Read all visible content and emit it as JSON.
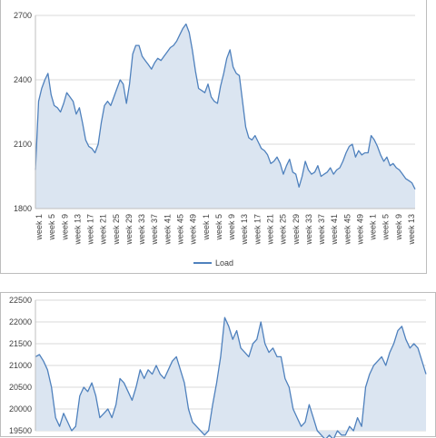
{
  "chart_data": [
    {
      "type": "area",
      "title": "",
      "xlabel": "",
      "ylabel": "",
      "ylim": [
        1800,
        2700
      ],
      "y_ticks": [
        1800,
        2100,
        2400,
        2700
      ],
      "x_tick_labels": [
        "week 1",
        "week 5",
        "week 9",
        "week 13",
        "week 17",
        "week 21",
        "week 25",
        "week 29",
        "week 33",
        "week 37",
        "week 41",
        "week 45",
        "week 49",
        "week 1",
        "week 5",
        "week 9",
        "week 13",
        "week 17",
        "week 21",
        "week 25",
        "week 29",
        "week 33",
        "week 37",
        "week 41",
        "week 45",
        "week 49",
        "week 1",
        "week 5",
        "week 9",
        "week 13"
      ],
      "grid": true,
      "legend": "bottom-center",
      "series": [
        {
          "name": "Load",
          "color": "#4f81bd",
          "fill": "#dbe5f1",
          "x": [
            0,
            1,
            2,
            3,
            4,
            5,
            6,
            7,
            8,
            9,
            10,
            11,
            12,
            13,
            14,
            15,
            16,
            17,
            18,
            19,
            20,
            21,
            22,
            23,
            24,
            25,
            26,
            27,
            28,
            29,
            30,
            31,
            32,
            33,
            34,
            35,
            36,
            37,
            38,
            39,
            40,
            41,
            42,
            43,
            44,
            45,
            46,
            47,
            48,
            49,
            50,
            51,
            52,
            53,
            54,
            55,
            56,
            57,
            58,
            59,
            60,
            61,
            62,
            63,
            64,
            65,
            66,
            67,
            68,
            69,
            70,
            71,
            72,
            73,
            74,
            75,
            76,
            77,
            78,
            79,
            80,
            81,
            82,
            83,
            84,
            85,
            86,
            87,
            88,
            89,
            90,
            91,
            92,
            93,
            94,
            95,
            96,
            97,
            98,
            99,
            100,
            101,
            102,
            103,
            104,
            105,
            106,
            107,
            108,
            109,
            110,
            111,
            112,
            113,
            114,
            115,
            116,
            117,
            118,
            119,
            120,
            121
          ],
          "values": [
            1980,
            2300,
            2360,
            2400,
            2430,
            2330,
            2280,
            2270,
            2250,
            2290,
            2340,
            2320,
            2300,
            2240,
            2270,
            2200,
            2120,
            2090,
            2080,
            2060,
            2100,
            2200,
            2280,
            2300,
            2280,
            2320,
            2360,
            2400,
            2380,
            2290,
            2380,
            2520,
            2560,
            2560,
            2510,
            2490,
            2470,
            2450,
            2480,
            2500,
            2490,
            2510,
            2530,
            2550,
            2560,
            2580,
            2610,
            2640,
            2660,
            2620,
            2540,
            2440,
            2360,
            2350,
            2340,
            2380,
            2320,
            2300,
            2290,
            2370,
            2430,
            2500,
            2540,
            2460,
            2430,
            2420,
            2300,
            2180,
            2130,
            2120,
            2140,
            2110,
            2080,
            2070,
            2050,
            2010,
            2020,
            2040,
            2010,
            1960,
            2000,
            2030,
            1970,
            1960,
            1900,
            1950,
            2020,
            1980,
            1960,
            1970,
            2000,
            1950,
            1960,
            1970,
            1990,
            1960,
            1980,
            1990,
            2020,
            2060,
            2090,
            2100,
            2040,
            2070,
            2050,
            2060,
            2060,
            2140,
            2120,
            2090,
            2050,
            2020,
            2040,
            2000,
            2010,
            1990,
            1980,
            1960,
            1940,
            1930,
            1920,
            1890
          ]
        }
      ]
    },
    {
      "type": "area",
      "title": "",
      "xlabel": "",
      "ylabel": "",
      "ylim": [
        19500,
        22500
      ],
      "y_ticks": [
        19500,
        20000,
        20500,
        21000,
        21500,
        22000,
        22500
      ],
      "grid": true,
      "series": [
        {
          "color": "#4f81bd",
          "fill": "#dbe5f1",
          "values": [
            21200,
            21250,
            21100,
            20900,
            20500,
            19800,
            19600,
            19900,
            19700,
            19500,
            19600,
            20300,
            20500,
            20400,
            20600,
            20300,
            19800,
            19900,
            20000,
            19800,
            20100,
            20700,
            20600,
            20400,
            20200,
            20500,
            20900,
            20700,
            20900,
            20800,
            21000,
            20800,
            20700,
            20900,
            21100,
            21200,
            20900,
            20600,
            20000,
            19700,
            19600,
            19500,
            19400,
            19500,
            20100,
            20600,
            21200,
            22100,
            21900,
            21600,
            21800,
            21400,
            21300,
            21200,
            21500,
            21600,
            22000,
            21500,
            21300,
            21400,
            21200,
            21200,
            20700,
            20500,
            20000,
            19800,
            19600,
            19700,
            20100,
            19800,
            19500,
            19400,
            19300,
            19400,
            19300,
            19500,
            19400,
            19400,
            19600,
            19500,
            19800,
            19600,
            20500,
            20800,
            21000,
            21100,
            21200,
            21000,
            21300,
            21500,
            21800,
            21900,
            21600,
            21400,
            21500,
            21400,
            21100,
            20800
          ]
        }
      ]
    }
  ]
}
